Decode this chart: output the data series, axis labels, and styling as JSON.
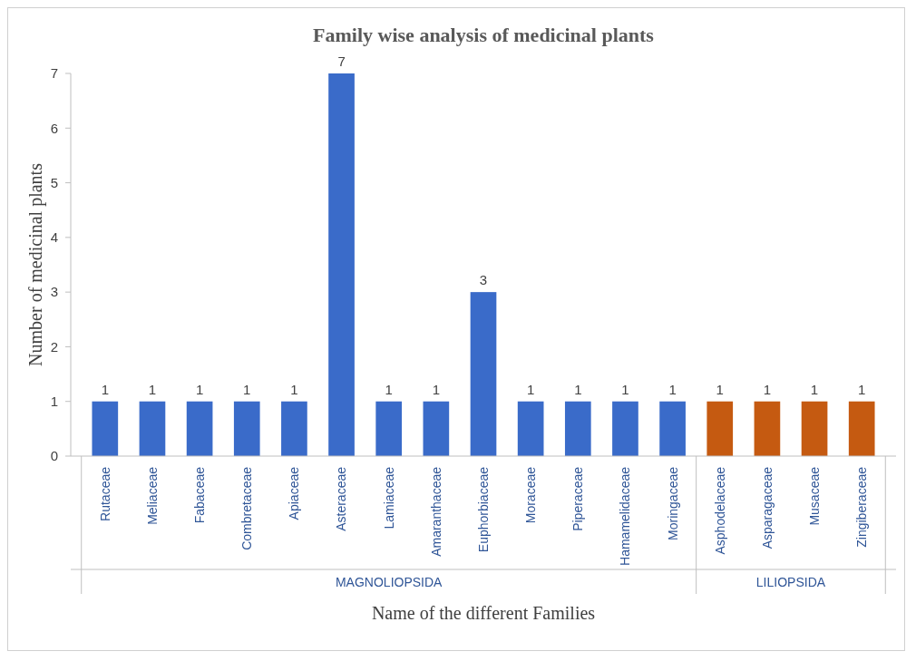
{
  "chart_data": {
    "type": "bar",
    "title": "Family wise analysis of medicinal plants",
    "xlabel": "Name of the different Families",
    "ylabel": "Number of medicinal plants",
    "categories": [
      "Rutaceae",
      "Meliaceae",
      "Fabaceae",
      "Combretaceae",
      "Apiaceae",
      "Asteraceae",
      "Lamiaceae",
      "Amaranthaceae",
      "Euphorbiaceae",
      "Moraceae",
      "Piperaceae",
      "Hamamelidaceae",
      "Moringaceae",
      "Asphodelaceae",
      "Asparagaceae",
      "Musaceae",
      "Zingiberaceae"
    ],
    "values": [
      1,
      1,
      1,
      1,
      1,
      7,
      1,
      1,
      3,
      1,
      1,
      1,
      1,
      1,
      1,
      1,
      1
    ],
    "colors": [
      "#3a6bc9",
      "#3a6bc9",
      "#3a6bc9",
      "#3a6bc9",
      "#3a6bc9",
      "#3a6bc9",
      "#3a6bc9",
      "#3a6bc9",
      "#3a6bc9",
      "#3a6bc9",
      "#3a6bc9",
      "#3a6bc9",
      "#3a6bc9",
      "#c55a11",
      "#c55a11",
      "#c55a11",
      "#c55a11"
    ],
    "ylim": [
      0,
      7
    ],
    "yticks": [
      0,
      1,
      2,
      3,
      4,
      5,
      6,
      7
    ],
    "grid": false,
    "data_labels": true,
    "annotations": [
      "MAGNOLIOPSIDA",
      "LILIOPSIDA"
    ]
  }
}
